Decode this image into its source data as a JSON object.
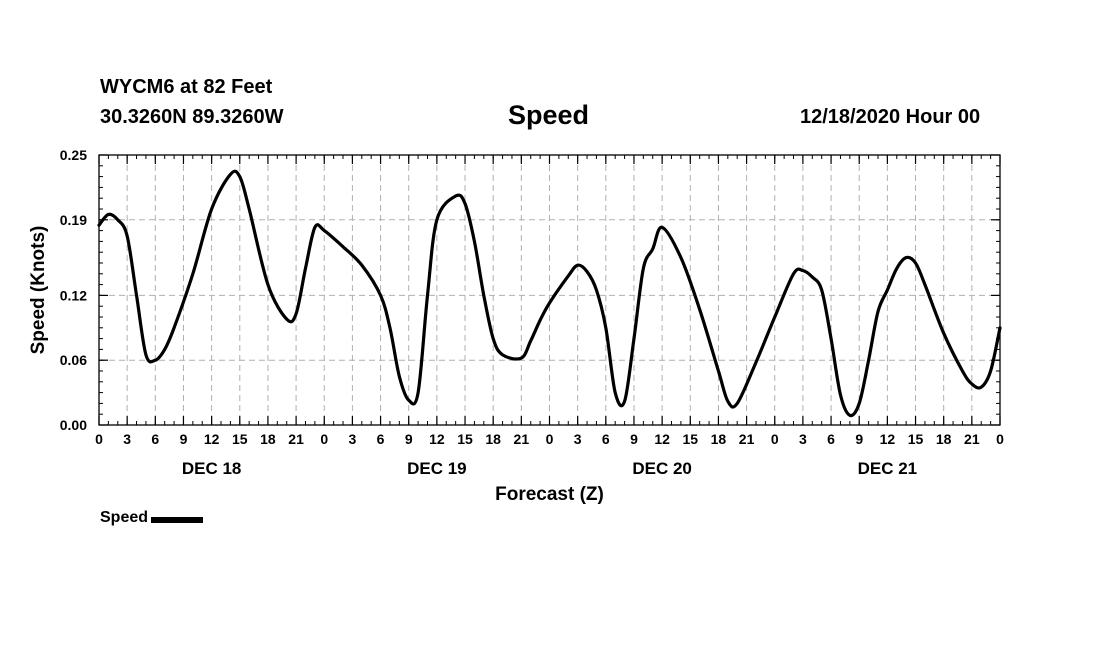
{
  "header": {
    "station": "WYCM6 at 82 Feet",
    "coords": "30.3260N 89.3260W",
    "title": "Speed",
    "issued": "12/18/2020 Hour 00"
  },
  "legend": {
    "label": "Speed"
  },
  "colors": {
    "line": "#000000",
    "grid": "#b0b0b0",
    "axis": "#000000",
    "background": "#ffffff"
  },
  "chart_data": {
    "type": "line",
    "title": "Speed",
    "xlabel": "Forecast (Z)",
    "ylabel": "Speed (Knots)",
    "xlim": [
      0,
      96
    ],
    "ylim": [
      0,
      0.25
    ],
    "yticks": [
      0.0,
      0.06,
      0.12,
      0.19,
      0.25
    ],
    "ytick_labels": [
      "0.00",
      "0.06",
      "0.12",
      "0.19",
      "0.25"
    ],
    "xticks": [
      0,
      3,
      6,
      9,
      12,
      15,
      18,
      21,
      24,
      27,
      30,
      33,
      36,
      39,
      42,
      45,
      48,
      51,
      54,
      57,
      60,
      63,
      66,
      69,
      72,
      75,
      78,
      81,
      84,
      87,
      90,
      93,
      96
    ],
    "xtick_labels": [
      "0",
      "3",
      "6",
      "9",
      "12",
      "15",
      "18",
      "21",
      "0",
      "3",
      "6",
      "9",
      "12",
      "15",
      "18",
      "21",
      "0",
      "3",
      "6",
      "9",
      "12",
      "15",
      "18",
      "21",
      "0",
      "3",
      "6",
      "9",
      "12",
      "15",
      "18",
      "21",
      "0"
    ],
    "day_labels": [
      {
        "hour": 12,
        "label": "DEC 18"
      },
      {
        "hour": 36,
        "label": "DEC 19"
      },
      {
        "hour": 60,
        "label": "DEC 20"
      },
      {
        "hour": 84,
        "label": "DEC 21"
      }
    ],
    "grid": true,
    "series": [
      {
        "name": "Speed",
        "x": [
          0,
          1,
          2,
          3,
          4,
          5,
          6,
          7,
          8,
          10,
          12,
          14,
          15,
          16,
          18,
          20,
          21,
          22,
          23,
          24,
          26,
          28,
          30,
          31,
          32,
          33,
          34,
          35,
          36,
          38,
          39,
          40,
          41,
          42,
          43,
          45,
          46,
          47,
          48,
          50,
          51,
          52,
          53,
          54,
          55,
          56,
          57,
          58,
          59,
          60,
          62,
          64,
          66,
          67,
          68,
          70,
          72,
          74,
          75,
          76,
          77,
          78,
          79,
          80,
          81,
          82,
          83,
          84,
          85,
          86,
          87,
          88,
          90,
          92,
          93,
          94,
          95,
          96
        ],
        "values": [
          0.185,
          0.195,
          0.19,
          0.175,
          0.12,
          0.065,
          0.06,
          0.07,
          0.09,
          0.14,
          0.2,
          0.232,
          0.23,
          0.2,
          0.13,
          0.098,
          0.103,
          0.145,
          0.183,
          0.18,
          0.165,
          0.148,
          0.12,
          0.09,
          0.045,
          0.023,
          0.03,
          0.12,
          0.19,
          0.212,
          0.205,
          0.17,
          0.12,
          0.08,
          0.065,
          0.062,
          0.078,
          0.097,
          0.113,
          0.138,
          0.148,
          0.142,
          0.125,
          0.09,
          0.03,
          0.022,
          0.08,
          0.145,
          0.163,
          0.183,
          0.155,
          0.107,
          0.05,
          0.022,
          0.02,
          0.058,
          0.1,
          0.14,
          0.143,
          0.137,
          0.125,
          0.08,
          0.028,
          0.009,
          0.02,
          0.06,
          0.105,
          0.125,
          0.145,
          0.155,
          0.15,
          0.13,
          0.085,
          0.05,
          0.038,
          0.035,
          0.05,
          0.09
        ]
      }
    ]
  }
}
